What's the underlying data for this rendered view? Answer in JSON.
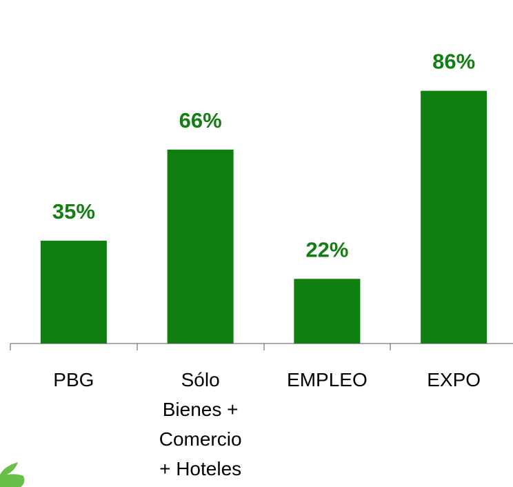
{
  "colors": {
    "bar": "#0f7f0f",
    "label": "#137f12",
    "axis": "#555555",
    "logo_green": "#6abf4b"
  },
  "logo": {
    "icon": "leaf-logo-icon"
  },
  "chart_data": {
    "type": "bar",
    "title": "",
    "xlabel": "",
    "ylabel": "",
    "ylim": [
      0,
      100
    ],
    "grid": false,
    "legend": "none",
    "categories": [
      [
        "PBG"
      ],
      [
        "Sólo",
        "Bienes +",
        "Comercio",
        "+ Hoteles"
      ],
      [
        "EMPLEO"
      ],
      [
        "EXPO"
      ]
    ],
    "values": [
      35,
      66,
      22,
      86
    ],
    "value_labels": [
      "35%",
      "66%",
      "22%",
      "86%"
    ]
  }
}
